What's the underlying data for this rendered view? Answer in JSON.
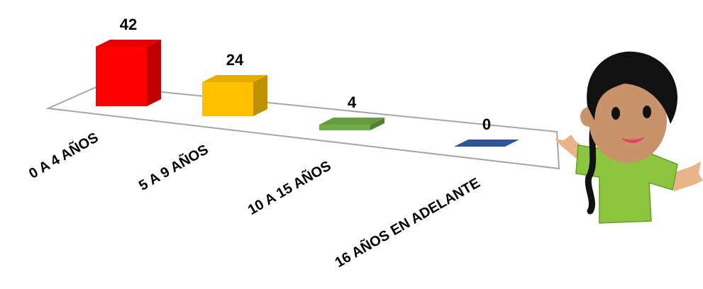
{
  "chart_data": {
    "type": "bar3d",
    "categories": [
      "0 A 4 AÑOS",
      "5 A 9 AÑOS",
      "10 A 15 AÑOS",
      "16 AÑOS EN ADELANTE"
    ],
    "values": [
      42,
      24,
      4,
      0
    ],
    "colors": [
      "#ff0000",
      "#ffc000",
      "#70ad47",
      "#2f5597"
    ]
  }
}
